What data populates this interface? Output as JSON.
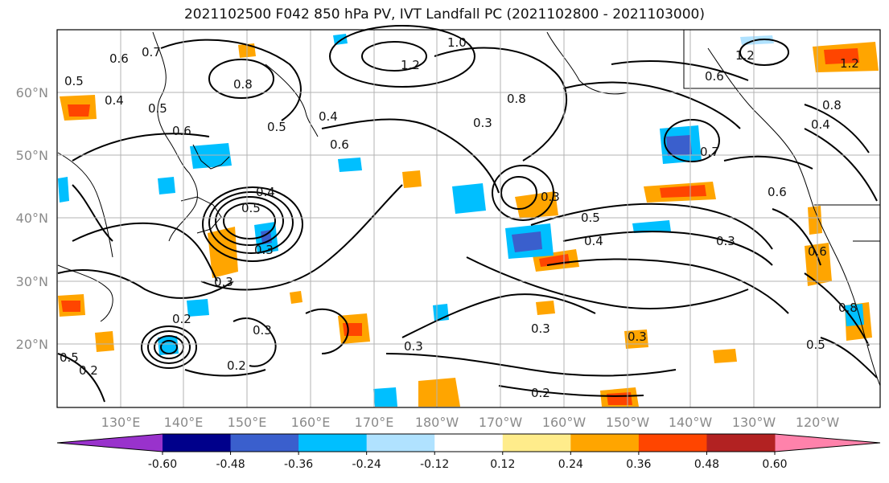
{
  "title": "2021102500 F042 850 hPa PV, IVT Landfall PC (2021102800 - 2021103000)",
  "lat_labels": [
    "60°N",
    "50°N",
    "40°N",
    "30°N",
    "20°N"
  ],
  "lon_labels": [
    "130°E",
    "140°E",
    "150°E",
    "160°E",
    "170°E",
    "180°W",
    "170°W",
    "160°W",
    "150°W",
    "140°W",
    "130°W",
    "120°W"
  ],
  "colorbar": {
    "colors": [
      "#9932cc",
      "#00008b",
      "#3a5fcd",
      "#00bfff",
      "#b0e2ff",
      "#ffffff",
      "#ffec8b",
      "#ffa500",
      "#ff4500",
      "#b22222",
      "#ff82ab"
    ],
    "tick_labels": [
      "-0.60",
      "-0.48",
      "-0.36",
      "-0.24",
      "-0.12",
      "0.12",
      "0.24",
      "0.36",
      "0.48",
      "0.60"
    ]
  },
  "contour_labels": [
    "0.6",
    "0.7",
    "0.5",
    "0.4",
    "0.5",
    "0.5",
    "0.4",
    "0.6",
    "0.8",
    "1.2",
    "1.0",
    "0.3",
    "0.8",
    "0.4",
    "0.3",
    "0.5",
    "0.3",
    "0.4",
    "0.5",
    "0.3",
    "0.6",
    "0.7",
    "0.6",
    "0.8",
    "0.4",
    "0.6",
    "1.2",
    "1.2",
    "0.6",
    "0.5",
    "0.3",
    "0.2",
    "0.2",
    "0.3",
    "0.3",
    "0.2",
    "0.3",
    "0.3",
    "0.2",
    "0.5",
    "0.8"
  ]
}
